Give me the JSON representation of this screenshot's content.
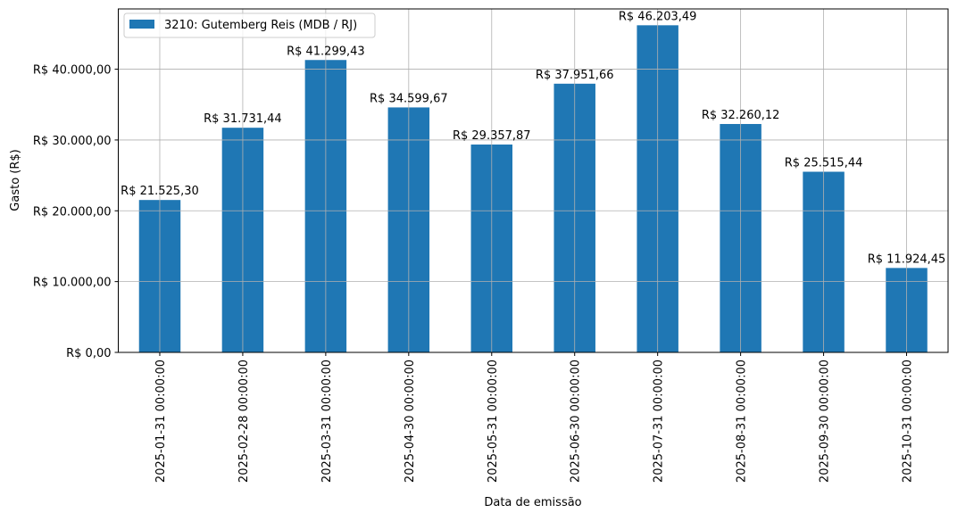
{
  "chart_data": {
    "type": "bar",
    "title": "",
    "xlabel": "Data de emissão",
    "ylabel": "Gasto (R$)",
    "categories": [
      "2025-01-31 00:00:00",
      "2025-02-28 00:00:00",
      "2025-03-31 00:00:00",
      "2025-04-30 00:00:00",
      "2025-05-31 00:00:00",
      "2025-06-30 00:00:00",
      "2025-07-31 00:00:00",
      "2025-08-31 00:00:00",
      "2025-09-30 00:00:00",
      "2025-10-31 00:00:00"
    ],
    "series": [
      {
        "name": "3210: Gutemberg Reis (MDB / RJ)",
        "color": "#1f77b4",
        "values": [
          21525.3,
          31731.44,
          41299.43,
          34599.67,
          29357.87,
          37951.66,
          46203.49,
          32260.12,
          25515.44,
          11924.45
        ],
        "labels": [
          "R$ 21.525,30",
          "R$ 31.731,44",
          "R$ 41.299,43",
          "R$ 34.599,67",
          "R$ 29.357,87",
          "R$ 37.951,66",
          "R$ 46.203,49",
          "R$ 32.260,12",
          "R$ 25.515,44",
          "R$ 11.924,45"
        ]
      }
    ],
    "ylim": [
      0,
      48513.66
    ],
    "yticks": [
      0,
      10000,
      20000,
      30000,
      40000
    ],
    "ytick_labels": [
      "R$ 0,00",
      "R$ 10.000,00",
      "R$ 20.000,00",
      "R$ 30.000,00",
      "R$ 40.000,00"
    ],
    "grid": true,
    "legend_position": "top-left"
  }
}
